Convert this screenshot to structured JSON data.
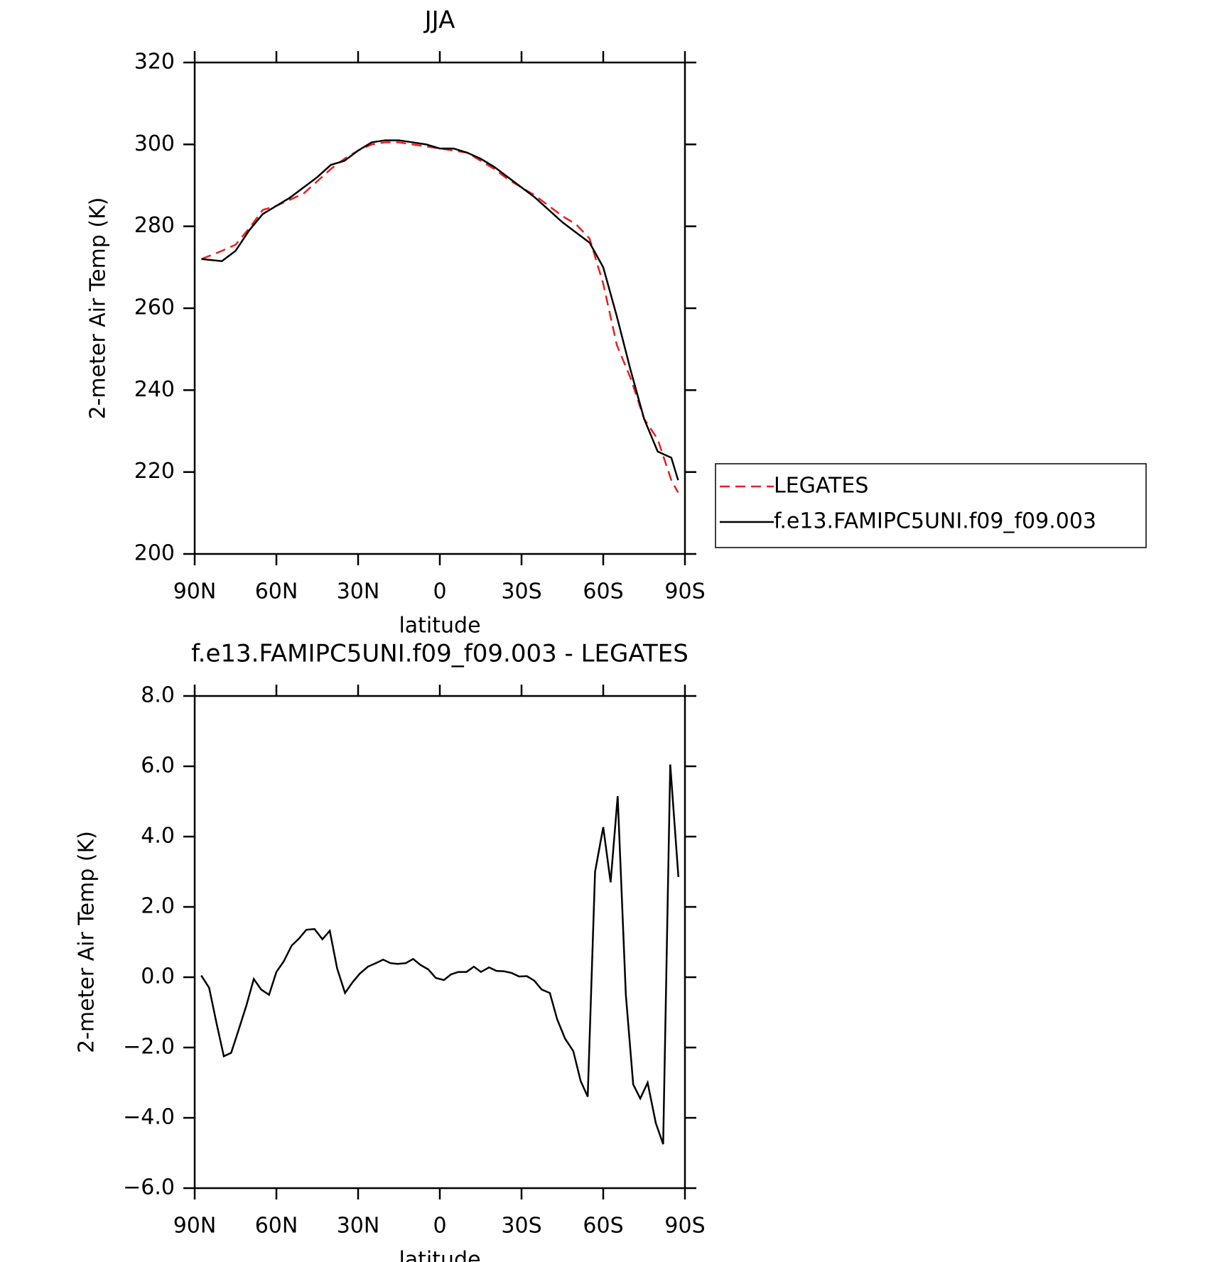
{
  "chart_data": [
    {
      "type": "line",
      "title": "JJA",
      "xlabel": "latitude",
      "ylabel": "2-meter Air Temp (K)",
      "x": [
        87.5,
        80,
        75,
        70,
        65,
        60,
        55,
        50,
        45,
        40,
        35,
        30,
        25,
        20,
        15,
        10,
        5,
        0,
        -5,
        -10,
        -15,
        -20,
        -25,
        -30,
        -35,
        -40,
        -45,
        -50,
        -55,
        -60,
        -65,
        -70,
        -75,
        -80,
        -85,
        -87.5
      ],
      "series": [
        {
          "name": "LEGATES",
          "color": "#e8201e",
          "linestyle": "dashed",
          "values": [
            272,
            274,
            275.5,
            279.5,
            284,
            285,
            286.5,
            288,
            291,
            294,
            296.5,
            298.5,
            300,
            300.5,
            300.5,
            300,
            299.5,
            299,
            298.5,
            298,
            296,
            294,
            291.5,
            289.5,
            287.5,
            285,
            282.5,
            280.5,
            277,
            266,
            251,
            243,
            233,
            228,
            218,
            215
          ]
        },
        {
          "name": "f.e13.FAMIPC5UNI.f09_f09.003",
          "color": "#000000",
          "linestyle": "solid",
          "values": [
            272,
            271.5,
            274,
            279,
            283,
            285,
            287,
            289.5,
            292,
            295,
            296,
            298.5,
            300.5,
            301,
            301,
            300.5,
            300,
            299,
            299,
            298,
            296.5,
            294.5,
            292,
            289.5,
            287,
            284,
            281,
            278.5,
            276,
            270,
            258,
            245,
            233,
            225,
            223.5,
            218
          ]
        }
      ],
      "xlim": [
        90,
        -90
      ],
      "xticks": [
        {
          "value": 90,
          "label": "90N"
        },
        {
          "value": 60,
          "label": "60N"
        },
        {
          "value": 30,
          "label": "30N"
        },
        0,
        {
          "value": -30,
          "label": "30S"
        },
        {
          "value": -60,
          "label": "60S"
        },
        {
          "value": -90,
          "label": "90S"
        }
      ],
      "ylim": [
        200,
        320
      ],
      "yticks": [
        200,
        220,
        240,
        260,
        280,
        300,
        320
      ],
      "legend": "right"
    },
    {
      "type": "line",
      "title": "f.e13.FAMIPC5UNI.f09_f09.003 - LEGATES",
      "xlabel": "latitude",
      "ylabel": "2-meter Air Temp (K)",
      "x": [
        87.6,
        84.7,
        82,
        79.3,
        76.6,
        74.3,
        71,
        68.3,
        65.6,
        62.7,
        60,
        57.3,
        54.4,
        51.7,
        49,
        46,
        43.1,
        40.4,
        37.7,
        34.8,
        32.1,
        29.4,
        26.4,
        23.5,
        20.8,
        18.1,
        15.5,
        12.5,
        9.8,
        7.1,
        4.2,
        1.5,
        -1.5,
        -4.1,
        -6.8,
        -9.8,
        -12.5,
        -15.1,
        -18.1,
        -20.8,
        -23.5,
        -26.4,
        -29.1,
        -32,
        -34.7,
        -37.4,
        -40.4,
        -43.1,
        -46,
        -49,
        -51.7,
        -54.3,
        -57,
        -60,
        -62.7,
        -65.3,
        -68.3,
        -71,
        -73.6,
        -76.3,
        -79.3,
        -82,
        -84.6,
        -87.6
      ],
      "series": [
        {
          "color": "#000000",
          "linestyle": "solid",
          "values": [
            0.05,
            -0.3,
            -1.3,
            -2.25,
            -2.15,
            -1.6,
            -0.8,
            -0.05,
            -0.35,
            -0.5,
            0.15,
            0.45,
            0.9,
            1.1,
            1.35,
            1.37,
            1.08,
            1.32,
            0.25,
            -0.45,
            -0.15,
            0.1,
            0.3,
            0.4,
            0.5,
            0.4,
            0.38,
            0.4,
            0.52,
            0.35,
            0.22,
            -0.02,
            -0.08,
            0.08,
            0.15,
            0.15,
            0.3,
            0.15,
            0.28,
            0.18,
            0.17,
            0.12,
            0.02,
            0.03,
            -0.1,
            -0.35,
            -0.45,
            -1.2,
            -1.75,
            -2.1,
            -2.95,
            -3.4,
            3.0,
            4.27,
            2.7,
            5.15,
            -0.5,
            -3.05,
            -3.45,
            -3.0,
            -4.15,
            -4.75,
            6.05,
            2.85
          ]
        }
      ],
      "xlim": [
        90,
        -90
      ],
      "xticks": [
        {
          "value": 90,
          "label": "90N"
        },
        {
          "value": 60,
          "label": "60N"
        },
        {
          "value": 30,
          "label": "30N"
        },
        0,
        {
          "value": -30,
          "label": "30S"
        },
        {
          "value": -60,
          "label": "60S"
        },
        {
          "value": -90,
          "label": "90S"
        }
      ],
      "ylim": [
        -6,
        8
      ],
      "yticks": [
        {
          "value": -6,
          "label": "−6.0"
        },
        {
          "value": -4,
          "label": "−4.0"
        },
        {
          "value": -2,
          "label": "−2.0"
        },
        {
          "value": 0,
          "label": "0.0"
        },
        {
          "value": 2,
          "label": "2.0"
        },
        {
          "value": 4,
          "label": "4.0"
        },
        {
          "value": 6,
          "label": "6.0"
        },
        {
          "value": 8,
          "label": "8.0"
        }
      ]
    }
  ]
}
